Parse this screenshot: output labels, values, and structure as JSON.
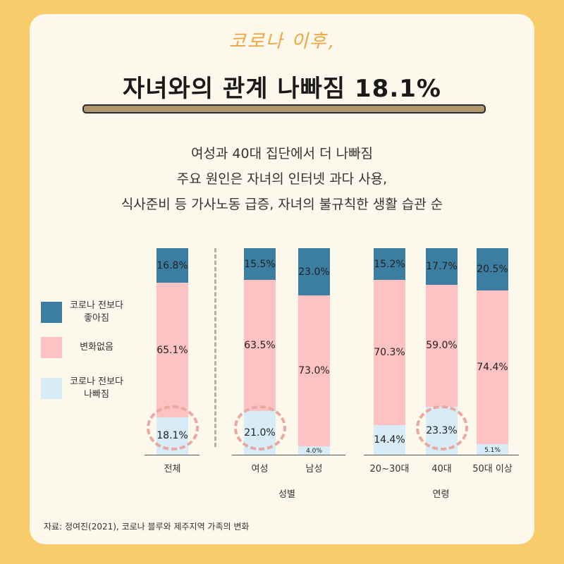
{
  "header": {
    "kicker": "코로나 이후,",
    "title": "자녀와의 관계 나빠짐 18.1%"
  },
  "subtitle": [
    "여성과 40대 집단에서 더 나빠짐",
    "주요 원인은 자녀의 인터넷 과다 사용,",
    "식사준비 등 가사노동 급증, 자녀의 불규칙한 생활 습관 순"
  ],
  "colors": {
    "better": "#3b7ea1",
    "nochange": "#ffc2c2",
    "worse": "#d8ecf7"
  },
  "legend": [
    {
      "key": "better",
      "label": "코로나 전보다 좋아짐"
    },
    {
      "key": "nochange",
      "label": "변화없음"
    },
    {
      "key": "worse",
      "label": "코로나 전보다 나빠짐"
    }
  ],
  "chart_data": {
    "type": "bar",
    "stacked": true,
    "categories": [
      "전체",
      "여성",
      "남성",
      "20~30대",
      "40대",
      "50대 이상"
    ],
    "groups": [
      {
        "label": "",
        "categories": [
          "전체"
        ]
      },
      {
        "label": "성별",
        "categories": [
          "여성",
          "남성"
        ]
      },
      {
        "label": "연령",
        "categories": [
          "20~30대",
          "40대",
          "50대 이상"
        ]
      }
    ],
    "series": [
      {
        "name": "코로나 전보다 나빠짐",
        "key": "worse",
        "values": [
          18.1,
          21.0,
          4.0,
          14.4,
          23.3,
          5.1
        ],
        "labels": [
          "18.1%",
          "21.0%",
          "4.0%",
          "14.4%",
          "23.3%",
          "5.1%"
        ]
      },
      {
        "name": "변화없음",
        "key": "nochange",
        "values": [
          65.1,
          63.5,
          73.0,
          70.3,
          59.0,
          74.4
        ],
        "labels": [
          "65.1%",
          "63.5%",
          "73.0%",
          "70.3%",
          "59.0%",
          "74.4%"
        ]
      },
      {
        "name": "코로나 전보다 좋아짐",
        "key": "better",
        "values": [
          16.8,
          15.5,
          23.0,
          15.2,
          17.7,
          20.5
        ],
        "labels": [
          "16.8%",
          "15.5%",
          "23.0%",
          "15.2%",
          "17.7%",
          "20.5%"
        ]
      }
    ],
    "highlighted": [
      "전체",
      "여성",
      "40대"
    ],
    "ylim": [
      0,
      100
    ]
  },
  "source": "자료: 정여진(2021), 코로나 블루와 제주지역 가족의 변화"
}
